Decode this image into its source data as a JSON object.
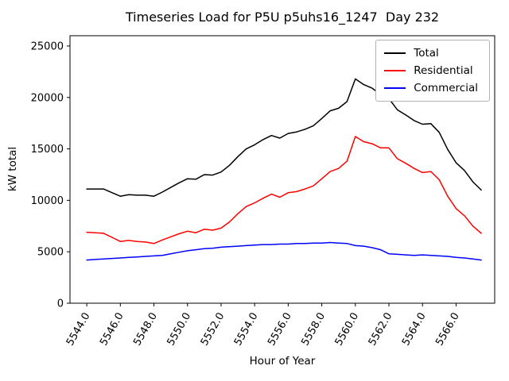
{
  "chart_data": {
    "type": "line",
    "title": "Timeseries Load for P5U p5uhs16_1247  Day 232",
    "xlabel": "Hour of Year",
    "ylabel": "kW total",
    "xlim": [
      5543.0,
      5568.3
    ],
    "ylim": [
      0,
      26000
    ],
    "grid": false,
    "legend_position": "upper right",
    "x_ticks": [
      5544,
      5546,
      5548,
      5550,
      5552,
      5554,
      5556,
      5558,
      5560,
      5562,
      5564,
      5566
    ],
    "x_tick_labels": [
      "5544.0",
      "5546.0",
      "5548.0",
      "5550.0",
      "5552.0",
      "5554.0",
      "5556.0",
      "5558.0",
      "5560.0",
      "5562.0",
      "5564.0",
      "5566.0"
    ],
    "y_ticks": [
      0,
      5000,
      10000,
      15000,
      20000,
      25000
    ],
    "y_tick_labels": [
      "0",
      "5000",
      "10000",
      "15000",
      "20000",
      "25000"
    ],
    "x": [
      5544.0,
      5544.5,
      5545.0,
      5545.5,
      5546.0,
      5546.5,
      5547.0,
      5547.5,
      5548.0,
      5548.5,
      5549.0,
      5549.5,
      5550.0,
      5550.5,
      5551.0,
      5551.5,
      5552.0,
      5552.5,
      5553.0,
      5553.5,
      5554.0,
      5554.5,
      5555.0,
      5555.5,
      5556.0,
      5556.5,
      5557.0,
      5557.5,
      5558.0,
      5558.5,
      5559.0,
      5559.5,
      5560.0,
      5560.5,
      5561.0,
      5561.5,
      5562.0,
      5562.5,
      5563.0,
      5563.5,
      5564.0,
      5564.5,
      5565.0,
      5565.5,
      5566.0,
      5566.5,
      5567.0,
      5567.5
    ],
    "series": [
      {
        "name": "Total",
        "color": "#000000",
        "values": [
          11100,
          11100,
          11100,
          10750,
          10400,
          10550,
          10500,
          10500,
          10400,
          10800,
          11250,
          11700,
          12100,
          12050,
          12500,
          12450,
          12750,
          13400,
          14250,
          15000,
          15400,
          15900,
          16300,
          16050,
          16500,
          16650,
          16900,
          17250,
          17950,
          18700,
          18950,
          19600,
          21800,
          21250,
          20900,
          20300,
          19900,
          18800,
          18300,
          17750,
          17400,
          17450,
          16600,
          14950,
          13650,
          12900,
          11800,
          11000
        ]
      },
      {
        "name": "Residential",
        "color": "#ff0000",
        "values": [
          6900,
          6850,
          6800,
          6400,
          6000,
          6100,
          6000,
          5950,
          5800,
          6150,
          6450,
          6750,
          7000,
          6850,
          7200,
          7100,
          7300,
          7900,
          8700,
          9400,
          9750,
          10200,
          10600,
          10300,
          10750,
          10850,
          11100,
          11400,
          12100,
          12800,
          13100,
          13800,
          16200,
          15700,
          15500,
          15100,
          15100,
          14050,
          13600,
          13100,
          12700,
          12800,
          12000,
          10400,
          9200,
          8500,
          7500,
          6800
        ]
      },
      {
        "name": "Commercial",
        "color": "#0000ff",
        "values": [
          4200,
          4250,
          4300,
          4350,
          4400,
          4450,
          4500,
          4550,
          4600,
          4650,
          4800,
          4950,
          5100,
          5200,
          5300,
          5350,
          5450,
          5500,
          5550,
          5600,
          5650,
          5700,
          5700,
          5750,
          5750,
          5800,
          5800,
          5850,
          5850,
          5900,
          5850,
          5800,
          5600,
          5550,
          5400,
          5200,
          4800,
          4750,
          4700,
          4650,
          4700,
          4650,
          4600,
          4550,
          4450,
          4400,
          4300,
          4200
        ]
      }
    ]
  }
}
